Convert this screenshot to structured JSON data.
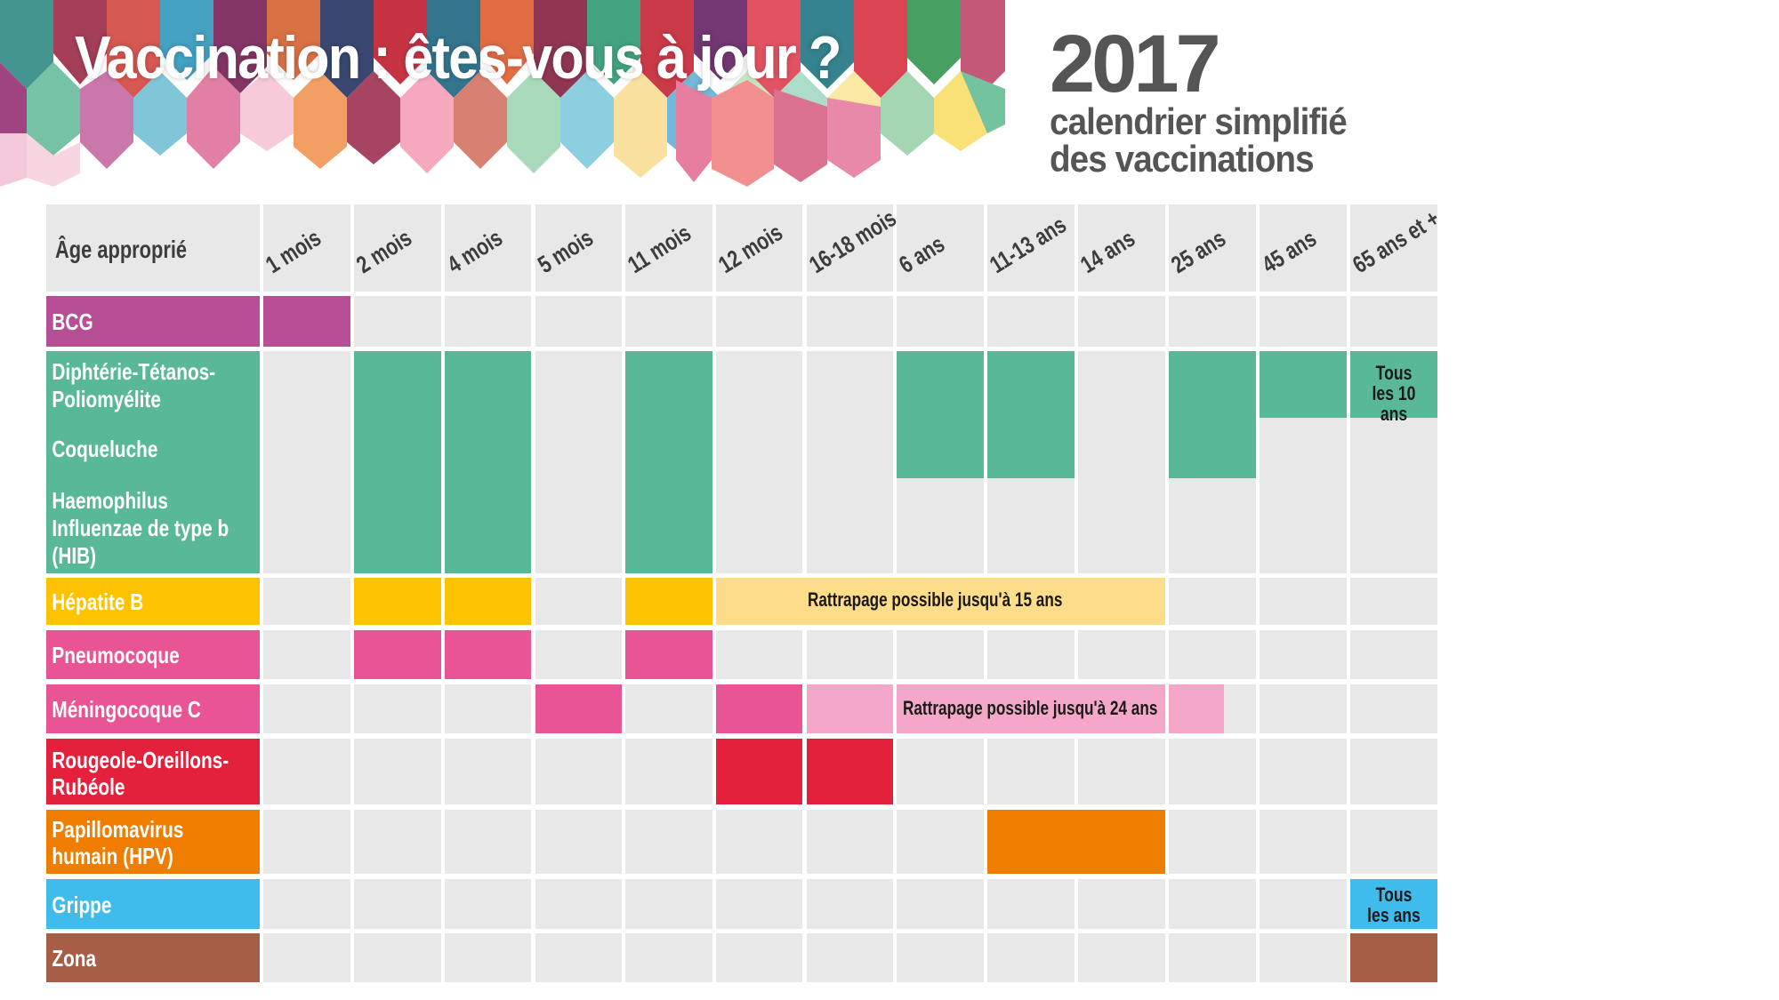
{
  "header": {
    "title": "Vaccination : êtes-vous à jour ?",
    "year": "2017",
    "subtitle_line1": "calendrier simplifié",
    "subtitle_line2": "des vaccinations"
  },
  "colors": {
    "grid_bg": "#e8e8e8",
    "bcg": "#b74f96",
    "dtp": "#58b897",
    "hepatite_b": "#fdc300",
    "hepatite_b_catchup": "#fddd8a",
    "pneumocoque": "#e95594",
    "meningocoque": "#e95594",
    "meningocoque_catchup": "#f4a7c8",
    "ror": "#e4213d",
    "hpv": "#ef7d00",
    "grippe": "#3fbcec",
    "zona": "#a65e47",
    "text_dark": "#3c3c3c"
  },
  "chart_data": {
    "type": "table",
    "title": "Vaccination : êtes-vous à jour ? — 2017 calendrier simplifié des vaccinations",
    "row_header_label": "Âge approprié",
    "columns": [
      "1 mois",
      "2 mois",
      "4 mois",
      "5 mois",
      "11 mois",
      "12 mois",
      "16-18 mois",
      "6 ans",
      "11-13 ans",
      "14 ans",
      "25 ans",
      "45 ans",
      "65 ans et +"
    ],
    "rows": [
      {
        "vaccine": "BCG",
        "recommended": [
          "1 mois"
        ]
      },
      {
        "vaccine": "Diphtérie-Tétanos-Poliomyélite",
        "recommended": [
          "2 mois",
          "4 mois",
          "11 mois",
          "6 ans",
          "11-13 ans",
          "25 ans",
          "45 ans",
          "65 ans et +"
        ],
        "notes": {
          "65 ans et +": "Tous les 10 ans"
        }
      },
      {
        "vaccine": "Coqueluche",
        "recommended": [
          "2 mois",
          "4 mois",
          "11 mois",
          "6 ans",
          "11-13 ans",
          "25 ans"
        ]
      },
      {
        "vaccine": "Haemophilus Influenzae de type b (HIB)",
        "recommended": [
          "2 mois",
          "4 mois",
          "11 mois"
        ]
      },
      {
        "vaccine": "Hépatite B",
        "recommended": [
          "2 mois",
          "4 mois",
          "11 mois"
        ],
        "catch_up": {
          "from": "12 mois",
          "to": "14 ans",
          "label": "Rattrapage possible jusqu'à 15 ans"
        }
      },
      {
        "vaccine": "Pneumocoque",
        "recommended": [
          "2 mois",
          "4 mois",
          "11 mois"
        ]
      },
      {
        "vaccine": "Méningocoque C",
        "recommended": [
          "5 mois",
          "12 mois"
        ],
        "catch_up": {
          "from": "16-18 mois",
          "to": "25 ans (partiel)",
          "label": "Rattrapage possible jusqu'à 24 ans"
        }
      },
      {
        "vaccine": "Rougeole-Oreillons-Rubéole",
        "recommended": [
          "12 mois",
          "16-18 mois"
        ]
      },
      {
        "vaccine": "Papillomavirus humain (HPV)",
        "recommended": [
          "11-13 ans",
          "14 ans"
        ]
      },
      {
        "vaccine": "Grippe",
        "recommended": [
          "65 ans et +"
        ],
        "notes": {
          "65 ans et +": "Tous les ans"
        }
      },
      {
        "vaccine": "Zona",
        "recommended": [
          "65 ans et +"
        ]
      }
    ]
  },
  "table": {
    "row_header_label": "Âge approprié",
    "ages": [
      "1 mois",
      "2 mois",
      "4 mois",
      "5 mois",
      "11 mois",
      "12 mois",
      "16-18 mois",
      "6 ans",
      "11-13 ans",
      "14 ans",
      "25 ans",
      "45 ans",
      "65 ans et +"
    ],
    "vaccines": {
      "bcg": "BCG",
      "dtp_1": "Diphtérie-Tétanos-",
      "dtp_2": "Poliomyélite",
      "coqueluche": "Coqueluche",
      "hib_1": "Haemophilus",
      "hib_2": "Influenzae de type b",
      "hib_3": "(HIB)",
      "hepb": "Hépatite B",
      "pneumo": "Pneumocoque",
      "menc": "Méningocoque C",
      "ror_1": "Rougeole-Oreillons-",
      "ror_2": "Rubéole",
      "hpv_1": "Papillomavirus",
      "hpv_2": "humain (HPV)",
      "grippe": "Grippe",
      "zona": "Zona"
    },
    "notes": {
      "dtp_65_1": "Tous",
      "dtp_65_2": "les 10 ans",
      "hepb_catchup": "Rattrapage possible jusqu'à 15 ans",
      "menc_catchup": "Rattrapage possible jusqu'à 24 ans",
      "grippe_65_1": "Tous",
      "grippe_65_2": "les ans"
    }
  }
}
